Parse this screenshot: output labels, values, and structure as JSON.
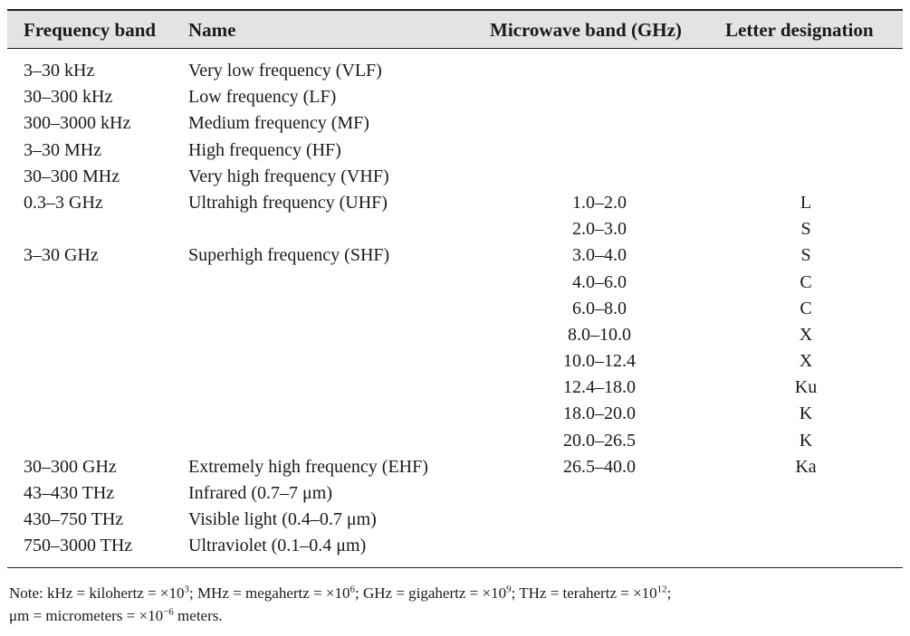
{
  "table": {
    "headers": [
      "Frequency band",
      "Name",
      "Microwave band (GHz)",
      "Letter designation"
    ],
    "rows": [
      {
        "band": "3–30 kHz",
        "name": "Very low frequency (VLF)",
        "microwave": "",
        "letter": ""
      },
      {
        "band": "30–300 kHz",
        "name": "Low frequency (LF)",
        "microwave": "",
        "letter": ""
      },
      {
        "band": "300–3000 kHz",
        "name": "Medium frequency (MF)",
        "microwave": "",
        "letter": ""
      },
      {
        "band": "3–30 MHz",
        "name": "High frequency (HF)",
        "microwave": "",
        "letter": ""
      },
      {
        "band": "30–300 MHz",
        "name": "Very high frequency (VHF)",
        "microwave": "",
        "letter": ""
      },
      {
        "band": "0.3–3 GHz",
        "name": "Ultrahigh frequency (UHF)",
        "microwave": "1.0–2.0",
        "letter": "L"
      },
      {
        "band": "",
        "name": "",
        "microwave": "2.0–3.0",
        "letter": "S"
      },
      {
        "band": "3–30 GHz",
        "name": "Superhigh frequency (SHF)",
        "microwave": "3.0–4.0",
        "letter": "S"
      },
      {
        "band": "",
        "name": "",
        "microwave": "4.0–6.0",
        "letter": "C"
      },
      {
        "band": "",
        "name": "",
        "microwave": "6.0–8.0",
        "letter": "C"
      },
      {
        "band": "",
        "name": "",
        "microwave": "8.0–10.0",
        "letter": "X"
      },
      {
        "band": "",
        "name": "",
        "microwave": "10.0–12.4",
        "letter": "X"
      },
      {
        "band": "",
        "name": "",
        "microwave": "12.4–18.0",
        "letter": "Ku"
      },
      {
        "band": "",
        "name": "",
        "microwave": "18.0–20.0",
        "letter": "K"
      },
      {
        "band": "",
        "name": "",
        "microwave": "20.0–26.5",
        "letter": "K"
      },
      {
        "band": "30–300 GHz",
        "name": "Extremely high frequency (EHF)",
        "microwave": "26.5–40.0",
        "letter": "Ka"
      },
      {
        "band": "43–430 THz",
        "name": "Infrared (0.7–7 μm)",
        "microwave": "",
        "letter": ""
      },
      {
        "band": "430–750 THz",
        "name": "Visible light (0.4–0.7 μm)",
        "microwave": "",
        "letter": ""
      },
      {
        "band": "750–3000 THz",
        "name": "Ultraviolet (0.1–0.4 μm)",
        "microwave": "",
        "letter": ""
      }
    ]
  },
  "note": {
    "parts": [
      "Note: kHz = kilohertz = ×10",
      "3",
      "; MHz = megahertz = ×10",
      "6",
      "; GHz = gigahertz = ×10",
      "9",
      "; THz = terahertz = ×10",
      "12",
      ";",
      "μm = micrometers = ×10",
      "−6",
      " meters."
    ]
  }
}
